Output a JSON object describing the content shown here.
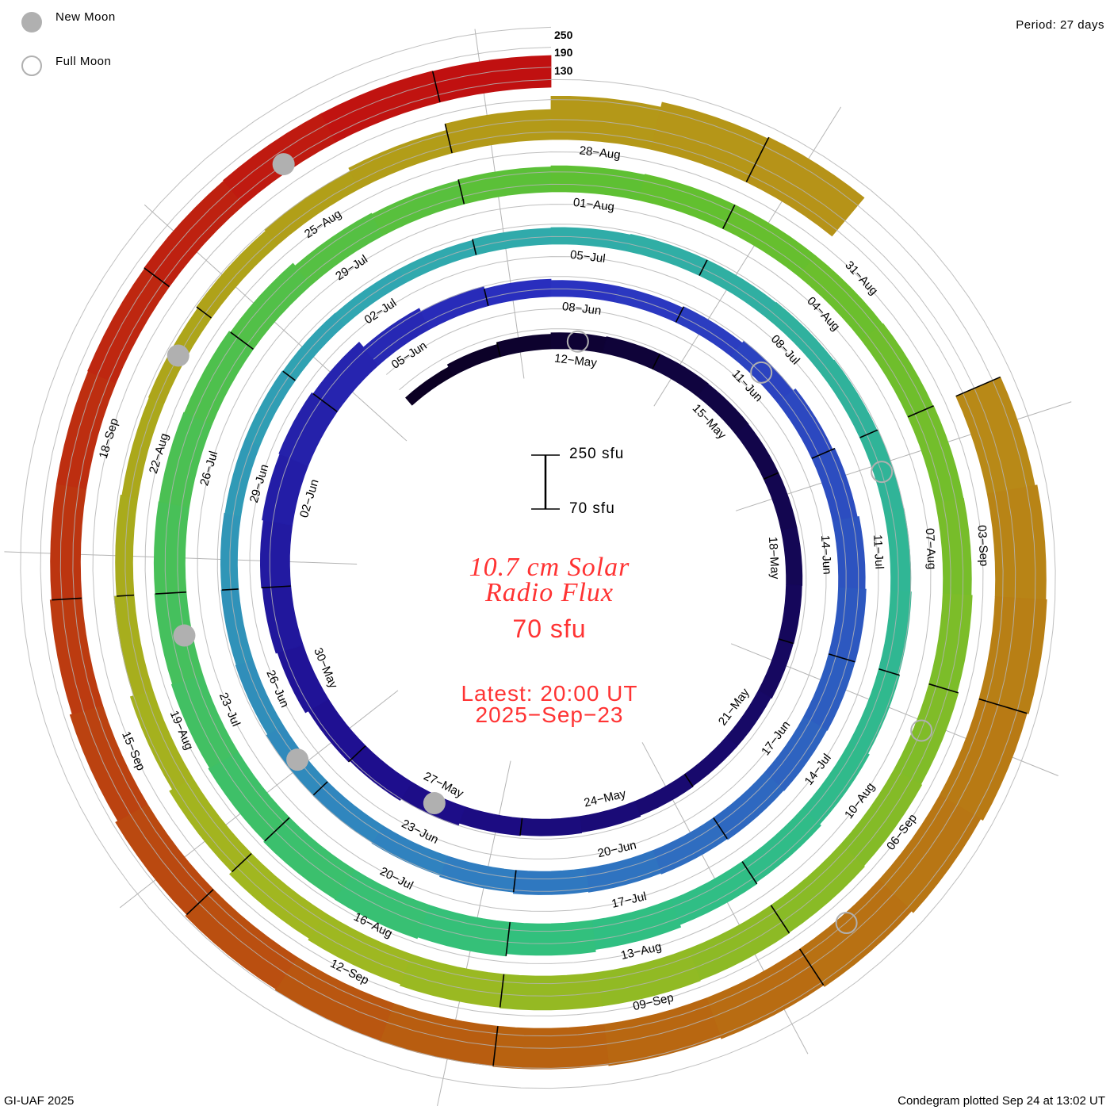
{
  "legend": {
    "new_moon": "New Moon",
    "full_moon": "Full Moon"
  },
  "period": "Period: 27 days",
  "scale_labels": [
    "250",
    "190",
    "130"
  ],
  "scale_bar": {
    "top": "250 sfu",
    "bottom": "70 sfu"
  },
  "title": [
    "10.7 cm Solar",
    "Radio Flux"
  ],
  "current": "70 sfu",
  "latest": [
    "Latest: 20:00 UT",
    "2025−Sep−23"
  ],
  "footer_left": "GI-UAF 2025",
  "footer_right": "Condegram plotted Sep 24 at 13:02 UT",
  "chart_data": {
    "type": "bar",
    "layout": "spiral condegram",
    "title": "10.7 cm Solar Radio Flux",
    "units": "sfu",
    "start_date": "2025-05-09",
    "period_days": 27,
    "ylim": [
      70,
      250
    ],
    "reference_levels": [
      130,
      190,
      250
    ],
    "values": [
      100,
      108,
      114,
      118,
      120,
      120,
      119,
      118,
      118,
      118,
      117,
      116,
      113,
      113,
      115,
      118,
      120,
      122,
      130,
      135,
      140,
      150,
      155,
      158,
      162,
      165,
      160,
      140,
      130,
      122,
      118,
      118,
      122,
      130,
      138,
      145,
      150,
      153,
      152,
      150,
      148,
      145,
      142,
      140,
      136,
      132,
      130,
      128,
      124,
      122,
      120,
      118,
      118,
      116,
      115,
      115,
      118,
      120,
      122,
      122,
      124,
      126,
      128,
      130,
      132,
      135,
      140,
      145,
      150,
      158,
      165,
      172,
      177,
      176,
      172,
      168,
      165,
      163,
      162,
      160,
      155,
      145,
      142,
      145,
      148,
      150,
      150,
      150,
      152,
      154,
      155,
      158,
      162,
      165,
      168,
      170,
      172,
      172,
      170,
      165,
      160,
      150,
      140,
      130,
      122,
      118,
      120,
      125,
      130,
      140,
      160,
      200,
      215,
      220,
      null,
      null,
      215,
      222,
      225,
      220,
      212,
      205,
      200,
      195,
      192,
      190,
      188,
      185,
      180,
      172,
      165,
      160,
      160,
      162,
      164,
      166,
      166,
      165
    ],
    "date_labels": [
      {
        "day": 3,
        "label": "12−May"
      },
      {
        "day": 6,
        "label": "15−May"
      },
      {
        "day": 9,
        "label": "18−May"
      },
      {
        "day": 12,
        "label": "21−May"
      },
      {
        "day": 15,
        "label": "24−May"
      },
      {
        "day": 18,
        "label": "27−May"
      },
      {
        "day": 21,
        "label": "30−May"
      },
      {
        "day": 24,
        "label": "02−Jun"
      },
      {
        "day": 27,
        "label": "05−Jun"
      },
      {
        "day": 30,
        "label": "08−Jun"
      },
      {
        "day": 33,
        "label": "11−Jun"
      },
      {
        "day": 36,
        "label": "14−Jun"
      },
      {
        "day": 39,
        "label": "17−Jun"
      },
      {
        "day": 42,
        "label": "20−Jun"
      },
      {
        "day": 45,
        "label": "23−Jun"
      },
      {
        "day": 48,
        "label": "26−Jun"
      },
      {
        "day": 51,
        "label": "29−Jun"
      },
      {
        "day": 54,
        "label": "02−Jul"
      },
      {
        "day": 57,
        "label": "05−Jul"
      },
      {
        "day": 60,
        "label": "08−Jul"
      },
      {
        "day": 63,
        "label": "11−Jul"
      },
      {
        "day": 66,
        "label": "14−Jul"
      },
      {
        "day": 69,
        "label": "17−Jul"
      },
      {
        "day": 72,
        "label": "20−Jul"
      },
      {
        "day": 75,
        "label": "23−Jul"
      },
      {
        "day": 78,
        "label": "26−Jul"
      },
      {
        "day": 81,
        "label": "29−Jul"
      },
      {
        "day": 84,
        "label": "01−Aug"
      },
      {
        "day": 87,
        "label": "04−Aug"
      },
      {
        "day": 90,
        "label": "07−Aug"
      },
      {
        "day": 93,
        "label": "10−Aug"
      },
      {
        "day": 96,
        "label": "13−Aug"
      },
      {
        "day": 99,
        "label": "16−Aug"
      },
      {
        "day": 102,
        "label": "19−Aug"
      },
      {
        "day": 105,
        "label": "22−Aug"
      },
      {
        "day": 108,
        "label": "25−Aug"
      },
      {
        "day": 111,
        "label": "28−Aug"
      },
      {
        "day": 114,
        "label": "31−Aug"
      },
      {
        "day": 117,
        "label": "03−Sep"
      },
      {
        "day": 120,
        "label": "06−Sep"
      },
      {
        "day": 123,
        "label": "09−Sep"
      },
      {
        "day": 126,
        "label": "12−Sep"
      },
      {
        "day": 129,
        "label": "15−Sep"
      },
      {
        "day": 132,
        "label": "18−Sep"
      }
    ],
    "new_moon_days": [
      18,
      47,
      76,
      106,
      135
    ],
    "full_moon_days": [
      3,
      33,
      62,
      92,
      121
    ],
    "color_stops": [
      {
        "day": 0,
        "color": "#0a0020"
      },
      {
        "day": 20,
        "color": "#1e0e90"
      },
      {
        "day": 30,
        "color": "#2a30c0"
      },
      {
        "day": 45,
        "color": "#3080c0"
      },
      {
        "day": 55,
        "color": "#30a8b0"
      },
      {
        "day": 70,
        "color": "#30c080"
      },
      {
        "day": 85,
        "color": "#60c030"
      },
      {
        "day": 100,
        "color": "#a0b820"
      },
      {
        "day": 108,
        "color": "#b0a018"
      },
      {
        "day": 115,
        "color": "#b89018"
      },
      {
        "day": 125,
        "color": "#b86010"
      },
      {
        "day": 137,
        "color": "#c01010"
      }
    ],
    "moon_color": "#b0b0b0",
    "text_accent": "#ff3333"
  }
}
